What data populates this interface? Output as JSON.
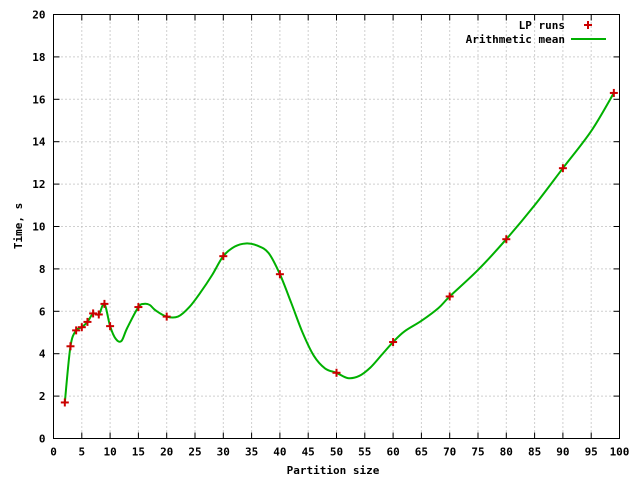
{
  "chart_data": {
    "type": "line",
    "title": "",
    "xlabel": "Partition size",
    "ylabel": "Time, s",
    "xlim": [
      0,
      100
    ],
    "ylim": [
      0,
      20
    ],
    "xticks": [
      0,
      5,
      10,
      15,
      20,
      25,
      30,
      35,
      40,
      45,
      50,
      55,
      60,
      65,
      70,
      75,
      80,
      85,
      90,
      95,
      100
    ],
    "yticks": [
      0,
      2,
      4,
      6,
      8,
      10,
      12,
      14,
      16,
      18,
      20
    ],
    "grid": true,
    "legend_position": "top-right",
    "series": [
      {
        "name": "LP runs",
        "kind": "points",
        "marker": "+",
        "color": "#cc0000",
        "x": [
          2,
          3,
          4,
          5,
          6,
          7,
          8,
          9,
          10,
          15,
          20,
          30,
          40,
          50,
          60,
          70,
          80,
          90,
          99
        ],
        "y": [
          1.7,
          4.35,
          5.1,
          5.25,
          5.5,
          5.9,
          5.85,
          6.35,
          5.3,
          6.2,
          5.75,
          8.6,
          7.75,
          3.1,
          4.55,
          6.7,
          9.4,
          12.75,
          16.3
        ]
      },
      {
        "name": "Arithmetic mean",
        "kind": "line",
        "color": "#00b000",
        "x": [
          2,
          3,
          4,
          5,
          6,
          7,
          8,
          9,
          10,
          11,
          12,
          13,
          15,
          16,
          17,
          18,
          20,
          22,
          24,
          26,
          28,
          30,
          32,
          34,
          36,
          38,
          40,
          42,
          44,
          46,
          48,
          50,
          52,
          54,
          56,
          58,
          60,
          62,
          65,
          68,
          70,
          75,
          80,
          85,
          90,
          95,
          99
        ],
        "y": [
          1.7,
          4.35,
          5.1,
          5.25,
          5.5,
          5.9,
          5.85,
          6.35,
          5.3,
          4.7,
          4.6,
          5.2,
          6.2,
          6.35,
          6.3,
          6.05,
          5.75,
          5.75,
          6.2,
          6.9,
          7.7,
          8.6,
          9.05,
          9.2,
          9.1,
          8.75,
          7.75,
          6.4,
          5.0,
          3.9,
          3.3,
          3.1,
          2.85,
          2.95,
          3.35,
          3.95,
          4.55,
          5.05,
          5.55,
          6.15,
          6.7,
          7.95,
          9.4,
          11.0,
          12.75,
          14.5,
          16.3
        ]
      }
    ]
  }
}
